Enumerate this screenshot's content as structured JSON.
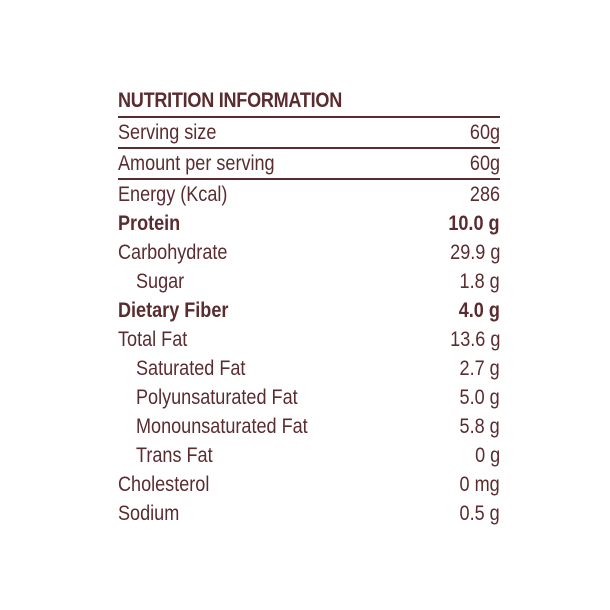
{
  "title": "NUTRITION INFORMATION",
  "rows": [
    {
      "label": "Serving size",
      "value": "60g"
    },
    {
      "label": "Amount per serving",
      "value": "60g"
    },
    {
      "label": "Energy (Kcal)",
      "value": "286"
    },
    {
      "label": "Protein",
      "value": "10.0 g"
    },
    {
      "label": "Carbohydrate",
      "value": "29.9 g"
    },
    {
      "label": "Sugar",
      "value": "1.8 g"
    },
    {
      "label": "Dietary Fiber",
      "value": "4.0 g"
    },
    {
      "label": "Total Fat",
      "value": "13.6 g"
    },
    {
      "label": "Saturated Fat",
      "value": "2.7 g"
    },
    {
      "label": "Polyunsaturated Fat",
      "value": "5.0 g"
    },
    {
      "label": "Monounsaturated Fat",
      "value": "5.8 g"
    },
    {
      "label": "Trans Fat",
      "value": "0 g"
    },
    {
      "label": "Cholesterol",
      "value": "0 mg"
    },
    {
      "label": "Sodium",
      "value": "0.5 g"
    }
  ],
  "colors": {
    "text": "#5a2c2f",
    "background": "#ffffff"
  }
}
